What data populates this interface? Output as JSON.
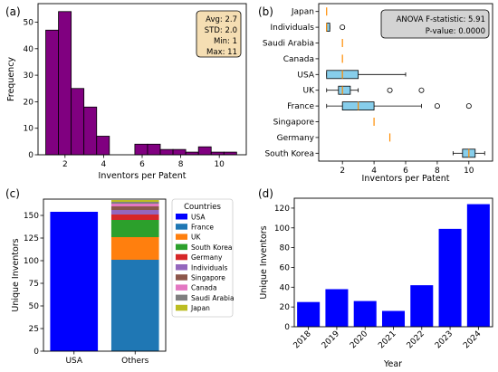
{
  "chart_data": [
    {
      "panel_label": "(a)",
      "type": "bar",
      "subtype": "histogram",
      "xlabel": "Inventors per Patent",
      "ylabel": "Frequency",
      "xlim": [
        0.6,
        11.4
      ],
      "ylim": [
        0,
        57
      ],
      "xticks": [
        2,
        4,
        6,
        8,
        10
      ],
      "yticks": [
        0,
        10,
        20,
        30,
        40,
        50
      ],
      "bar_color": "#800080",
      "bins": [
        {
          "x0": 1.0,
          "x1": 1.66,
          "count": 47
        },
        {
          "x0": 1.66,
          "x1": 2.32,
          "count": 54
        },
        {
          "x0": 2.32,
          "x1": 2.98,
          "count": 25
        },
        {
          "x0": 2.98,
          "x1": 3.64,
          "count": 18
        },
        {
          "x0": 3.64,
          "x1": 4.3,
          "count": 7
        },
        {
          "x0": 4.3,
          "x1": 4.96,
          "count": 0
        },
        {
          "x0": 4.96,
          "x1": 5.62,
          "count": 0
        },
        {
          "x0": 5.62,
          "x1": 6.28,
          "count": 4
        },
        {
          "x0": 6.28,
          "x1": 6.94,
          "count": 4
        },
        {
          "x0": 6.94,
          "x1": 7.6,
          "count": 2
        },
        {
          "x0": 7.6,
          "x1": 8.26,
          "count": 2
        },
        {
          "x0": 8.26,
          "x1": 8.92,
          "count": 1
        },
        {
          "x0": 8.92,
          "x1": 9.58,
          "count": 3
        },
        {
          "x0": 9.58,
          "x1": 10.24,
          "count": 1
        },
        {
          "x0": 10.24,
          "x1": 10.9,
          "count": 1
        }
      ],
      "stats_box": [
        "Avg: 2.7",
        "STD: 2.0",
        "Min: 1",
        "Max: 11"
      ],
      "stats_box_color": "#f5deb3",
      "grid": false
    },
    {
      "panel_label": "(b)",
      "type": "boxplot",
      "orientation": "horizontal",
      "xlabel": "Inventors per Patent",
      "xlim": [
        0.5,
        11.5
      ],
      "xticks": [
        2,
        4,
        6,
        8,
        10
      ],
      "box_color": "#87ceeb",
      "median_color": "#ff8c00",
      "annotation": [
        "ANOVA F-statistic: 5.91",
        "P-value: 0.0000"
      ],
      "annotation_color": "#d3d3d3",
      "categories": [
        {
          "name": "Japan",
          "min": 1,
          "q1": 1,
          "median": 1,
          "q3": 1,
          "max": 1,
          "outliers": []
        },
        {
          "name": "Individuals",
          "min": 1,
          "q1": 1,
          "median": 1,
          "q3": 1.2,
          "max": 1.2,
          "outliers": [
            2
          ]
        },
        {
          "name": "Saudi Arabia",
          "min": 2,
          "q1": 2,
          "median": 2,
          "q3": 2,
          "max": 2,
          "outliers": []
        },
        {
          "name": "Canada",
          "min": 2,
          "q1": 2,
          "median": 2,
          "q3": 2,
          "max": 2,
          "outliers": []
        },
        {
          "name": "USA",
          "min": 1,
          "q1": 1,
          "median": 2,
          "q3": 3,
          "max": 6,
          "outliers": []
        },
        {
          "name": "UK",
          "min": 1,
          "q1": 1.75,
          "median": 2,
          "q3": 2.5,
          "max": 3,
          "outliers": [
            5,
            7
          ]
        },
        {
          "name": "France",
          "min": 1,
          "q1": 2,
          "median": 3,
          "q3": 4,
          "max": 7,
          "outliers": [
            8,
            10
          ]
        },
        {
          "name": "Singapore",
          "min": 4,
          "q1": 4,
          "median": 4,
          "q3": 4,
          "max": 4,
          "outliers": []
        },
        {
          "name": "Germany",
          "min": 5,
          "q1": 5,
          "median": 5,
          "q3": 5,
          "max": 5,
          "outliers": []
        },
        {
          "name": "South Korea",
          "min": 9,
          "q1": 9.6,
          "median": 10,
          "q3": 10.4,
          "max": 11,
          "outliers": []
        }
      ],
      "grid": false
    },
    {
      "panel_label": "(c)",
      "type": "bar",
      "subtype": "stacked",
      "ylabel": "Unique Inventors",
      "categories": [
        "USA",
        "Others"
      ],
      "ylim": [
        0,
        168
      ],
      "yticks": [
        0,
        25,
        50,
        75,
        100,
        125,
        150
      ],
      "legend_title": "Countries",
      "legend_position": "right",
      "series": [
        {
          "name": "USA",
          "color": "#0000ff",
          "values": [
            154,
            0
          ]
        },
        {
          "name": "France",
          "color": "#1f77b4",
          "values": [
            0,
            101
          ]
        },
        {
          "name": "UK",
          "color": "#ff7f0e",
          "values": [
            0,
            25
          ]
        },
        {
          "name": "South Korea",
          "color": "#2ca02c",
          "values": [
            0,
            19
          ]
        },
        {
          "name": "Germany",
          "color": "#d62728",
          "values": [
            0,
            6
          ]
        },
        {
          "name": "Individuals",
          "color": "#9467bd",
          "values": [
            0,
            5
          ]
        },
        {
          "name": "Singapore",
          "color": "#8c564b",
          "values": [
            0,
            4
          ]
        },
        {
          "name": "Canada",
          "color": "#e377c2",
          "values": [
            0,
            3
          ]
        },
        {
          "name": "Saudi Arabia",
          "color": "#7f7f7f",
          "values": [
            0,
            2
          ]
        },
        {
          "name": "Japan",
          "color": "#bcbd22",
          "values": [
            0,
            2
          ]
        }
      ],
      "grid": false
    },
    {
      "panel_label": "(d)",
      "type": "bar",
      "xlabel": "Year",
      "ylabel": "Unique Inventors",
      "categories": [
        "2018",
        "2019",
        "2020",
        "2021",
        "2022",
        "2023",
        "2024"
      ],
      "values": [
        25,
        38,
        26,
        16,
        42,
        99,
        124
      ],
      "ylim": [
        0,
        130
      ],
      "yticks": [
        0,
        20,
        40,
        60,
        80,
        100,
        120
      ],
      "bar_color": "#0000ff",
      "grid": false
    }
  ]
}
